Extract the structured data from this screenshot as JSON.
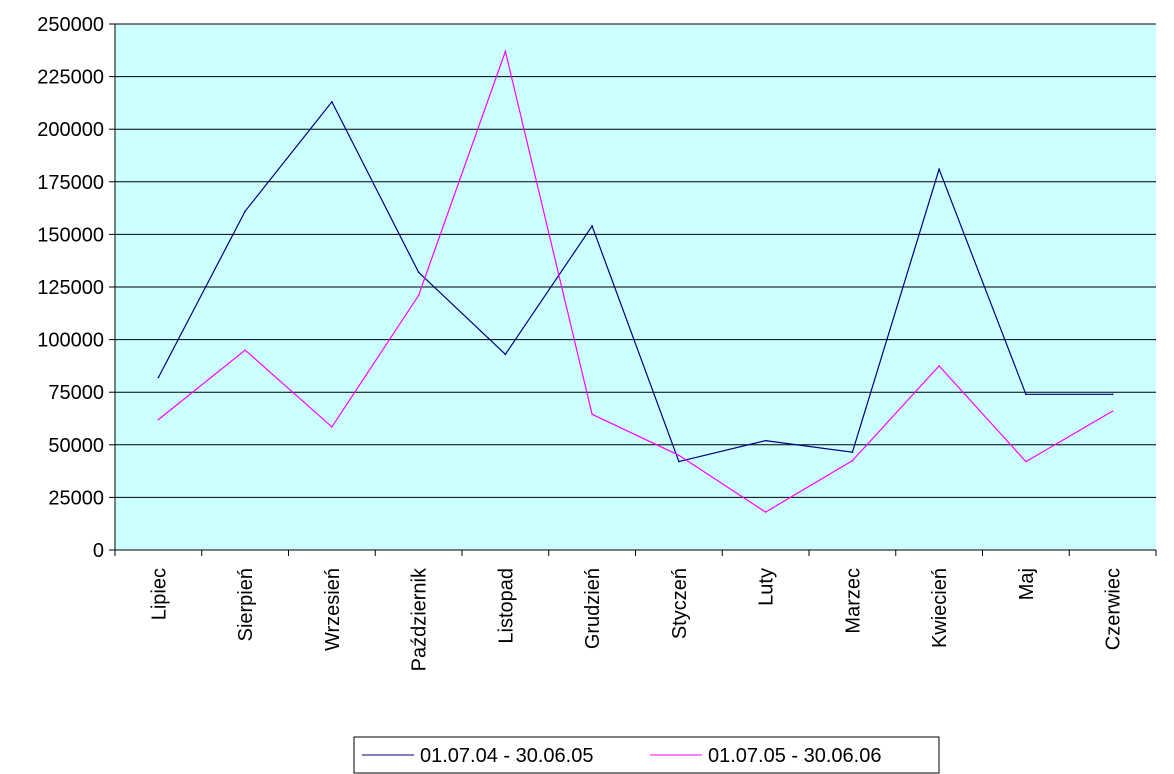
{
  "chart_data": {
    "type": "line",
    "title": "",
    "xlabel": "",
    "ylabel": "",
    "ylim": [
      0,
      250000
    ],
    "yticks": [
      0,
      25000,
      50000,
      75000,
      100000,
      125000,
      150000,
      175000,
      200000,
      225000,
      250000
    ],
    "categories": [
      "Lipiec",
      "Sierpień",
      "Wrzesień",
      "Październik",
      "Listopad",
      "Grudzień",
      "Styczeń",
      "Luty",
      "Marzec",
      "Kwiecień",
      "Maj",
      "Czerwiec"
    ],
    "series": [
      {
        "name": "01.07.04 - 30.06.05",
        "color": "#000080",
        "values": [
          82000,
          161000,
          213000,
          132000,
          93000,
          154000,
          42000,
          52000,
          46500,
          181000,
          74000,
          74000
        ]
      },
      {
        "name": "01.07.05 - 30.06.06",
        "color": "#ff00ff",
        "values": [
          62000,
          95000,
          58500,
          121000,
          237000,
          64500,
          45000,
          18000,
          42500,
          87500,
          42000,
          66000
        ]
      }
    ],
    "grid": true,
    "legend_position": "bottom",
    "plot_background": "#ccffff"
  }
}
